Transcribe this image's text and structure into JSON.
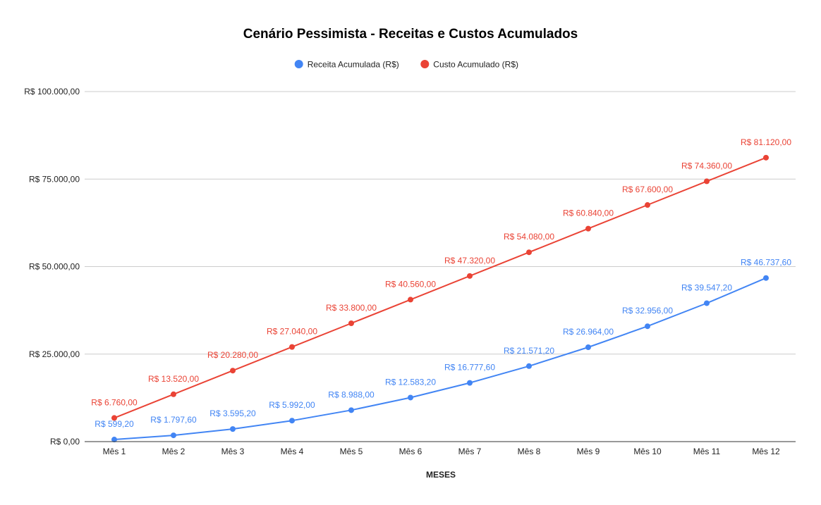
{
  "chart_data": {
    "type": "line",
    "title": "Cenário Pessimista - Receitas e Custos Acumulados",
    "xlabel": "MESES",
    "ylabel": "",
    "categories": [
      "Mês 1",
      "Mês 2",
      "Mês 3",
      "Mês 4",
      "Mês 5",
      "Mês 6",
      "Mês 7",
      "Mês 8",
      "Mês 9",
      "Mês 10",
      "Mês 11",
      "Mês 12"
    ],
    "ylim": [
      0,
      100000
    ],
    "yticks": [
      0,
      25000,
      50000,
      75000,
      100000
    ],
    "ytick_labels": [
      "R$ 0,00",
      "R$ 25.000,00",
      "R$ 50.000,00",
      "R$ 75.000,00",
      "R$ 100.000,00"
    ],
    "grid": true,
    "legend_position": "top",
    "series": [
      {
        "name": "Receita Acumulada (R$)",
        "color": "#4285f4",
        "values": [
          599.2,
          1797.6,
          3595.2,
          5992,
          8988,
          12583.2,
          16777.6,
          21571.2,
          26964,
          32956,
          39547.2,
          46737.6
        ],
        "labels": [
          "R$ 599,20",
          "R$ 1.797,60",
          "R$ 3.595,20",
          "R$ 5.992,00",
          "R$ 8.988,00",
          "R$ 12.583,20",
          "R$ 16.777,60",
          "R$ 21.571,20",
          "R$ 26.964,00",
          "R$ 32.956,00",
          "R$ 39.547,20",
          "R$ 46.737,60"
        ]
      },
      {
        "name": "Custo Acumulado (R$)",
        "color": "#ea4335",
        "values": [
          6760,
          13520,
          20280,
          27040,
          33800,
          40560,
          47320,
          54080,
          60840,
          67600,
          74360,
          81120
        ],
        "labels": [
          "R$ 6.760,00",
          "R$ 13.520,00",
          "R$ 20.280,00",
          "R$ 27.040,00",
          "R$ 33.800,00",
          "R$ 40.560,00",
          "R$ 47.320,00",
          "R$ 54.080,00",
          "R$ 60.840,00",
          "R$ 67.600,00",
          "R$ 74.360,00",
          "R$ 81.120,00"
        ]
      }
    ]
  }
}
